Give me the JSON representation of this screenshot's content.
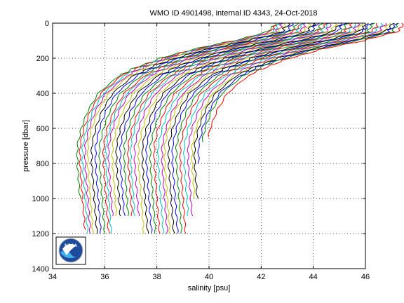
{
  "chart_data": {
    "type": "line",
    "title": "WMO ID 4901498, internal ID 4343, 24-Oct-2018",
    "xlabel": "salinity [psu]",
    "ylabel": "pressure [dbar]",
    "xlim": [
      34,
      46
    ],
    "ylim": [
      0,
      1400
    ],
    "y_reversed": true,
    "grid": true,
    "grid_style": "dotted",
    "xticks": [
      34,
      36,
      38,
      40,
      42,
      44,
      46
    ],
    "yticks": [
      0,
      200,
      400,
      600,
      800,
      1000,
      1200,
      1400
    ],
    "series_colors": [
      "#008000",
      "#ff0000",
      "#00bfbf",
      "#bf00bf",
      "#bfbf00",
      "#000000",
      "#0000ff"
    ],
    "profile_shape": {
      "pressures": [
        0,
        50,
        100,
        150,
        200,
        250,
        300,
        400,
        500,
        600,
        700,
        800,
        900,
        1000,
        1100,
        1200
      ],
      "offsets_psu": [
        7.6,
        7.3,
        6.0,
        4.4,
        3.2,
        2.3,
        1.6,
        0.8,
        0.4,
        0.15,
        0.0,
        0.0,
        0.05,
        0.1,
        0.15,
        0.2
      ]
    },
    "series": [
      {
        "deep_base": 34.95,
        "max_pressure": 1000
      },
      {
        "deep_base": 35.05,
        "max_pressure": 1180
      },
      {
        "deep_base": 35.15,
        "max_pressure": 1200
      },
      {
        "deep_base": 35.25,
        "max_pressure": 1200
      },
      {
        "deep_base": 35.35,
        "max_pressure": 1200
      },
      {
        "deep_base": 35.5,
        "max_pressure": 1200
      },
      {
        "deep_base": 35.65,
        "max_pressure": 1200
      },
      {
        "deep_base": 35.8,
        "max_pressure": 1200
      },
      {
        "deep_base": 35.95,
        "max_pressure": 1200
      },
      {
        "deep_base": 36.05,
        "max_pressure": 1200
      },
      {
        "deep_base": 36.15,
        "max_pressure": 1100
      },
      {
        "deep_base": 36.3,
        "max_pressure": 1100
      },
      {
        "deep_base": 36.45,
        "max_pressure": 1100
      },
      {
        "deep_base": 36.6,
        "max_pressure": 1100
      },
      {
        "deep_base": 36.75,
        "max_pressure": 1100
      },
      {
        "deep_base": 36.9,
        "max_pressure": 1100
      },
      {
        "deep_base": 37.0,
        "max_pressure": 1100
      },
      {
        "deep_base": 37.15,
        "max_pressure": 1100
      },
      {
        "deep_base": 37.3,
        "max_pressure": 1200
      },
      {
        "deep_base": 37.45,
        "max_pressure": 1200
      },
      {
        "deep_base": 37.6,
        "max_pressure": 1200
      },
      {
        "deep_base": 37.75,
        "max_pressure": 1200
      },
      {
        "deep_base": 37.9,
        "max_pressure": 1200
      },
      {
        "deep_base": 38.05,
        "max_pressure": 1200
      },
      {
        "deep_base": 38.2,
        "max_pressure": 1200
      },
      {
        "deep_base": 38.3,
        "max_pressure": 1200
      },
      {
        "deep_base": 38.45,
        "max_pressure": 1200
      },
      {
        "deep_base": 38.6,
        "max_pressure": 1200
      },
      {
        "deep_base": 38.75,
        "max_pressure": 1200
      },
      {
        "deep_base": 38.9,
        "max_pressure": 1200
      },
      {
        "deep_base": 39.05,
        "max_pressure": 1100
      },
      {
        "deep_base": 39.2,
        "max_pressure": 1100
      },
      {
        "deep_base": 39.35,
        "max_pressure": 1000
      },
      {
        "deep_base": 39.45,
        "max_pressure": 1000
      },
      {
        "deep_base": 39.6,
        "max_pressure": 800
      },
      {
        "deep_base": 39.7,
        "max_pressure": 680
      },
      {
        "deep_base": 39.9,
        "max_pressure": 650
      }
    ]
  },
  "logo": {
    "text": "NOAA",
    "colors": {
      "blue": "#1e4c9a",
      "light_blue": "#3fb0ea",
      "white": "#ffffff"
    }
  }
}
